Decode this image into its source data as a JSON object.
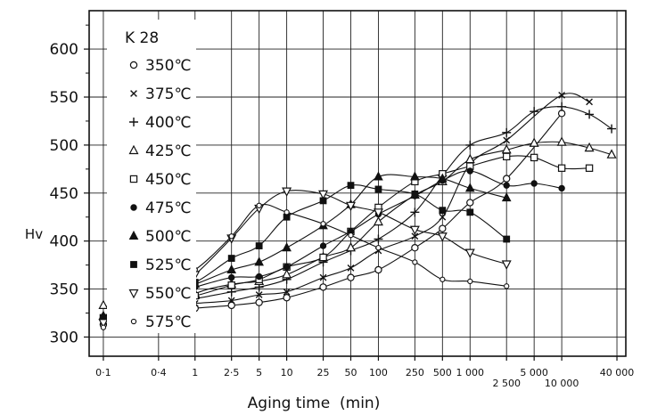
{
  "chart_data": {
    "type": "line",
    "title": "",
    "ylabel": "Hv",
    "xlabel": "Aging time  (min)",
    "xscale": "log",
    "xlim": [
      0.07,
      50000
    ],
    "ylim": [
      280,
      640
    ],
    "grid": true,
    "legend_title": "K 28",
    "legend_position": "top-left",
    "yticks": [
      300,
      350,
      400,
      450,
      500,
      550,
      600
    ],
    "xticks": [
      {
        "v": 0.1,
        "label": "0·1",
        "row": 1
      },
      {
        "v": 0.4,
        "label": "0·4",
        "row": 1
      },
      {
        "v": 1,
        "label": "1",
        "row": 1
      },
      {
        "v": 2.5,
        "label": "2·5",
        "row": 1
      },
      {
        "v": 5,
        "label": "5",
        "row": 1
      },
      {
        "v": 10,
        "label": "10",
        "row": 1
      },
      {
        "v": 25,
        "label": "25",
        "row": 1
      },
      {
        "v": 50,
        "label": "50",
        "row": 1
      },
      {
        "v": 100,
        "label": "100",
        "row": 1
      },
      {
        "v": 250,
        "label": "250",
        "row": 1
      },
      {
        "v": 500,
        "label": "500",
        "row": 1
      },
      {
        "v": 1000,
        "label": "1 000",
        "row": 1
      },
      {
        "v": 2500,
        "label": "2 500",
        "row": 2
      },
      {
        "v": 5000,
        "label": "5 000",
        "row": 1
      },
      {
        "v": 10000,
        "label": "10 000",
        "row": 2
      },
      {
        "v": 40000,
        "label": "40 000",
        "row": 1
      }
    ],
    "series": [
      {
        "name": "350℃",
        "marker": "circle-open",
        "x": [
          0.1,
          0.4,
          1,
          2.5,
          5,
          10,
          25,
          50,
          100,
          250,
          500,
          1000,
          2500,
          10000
        ],
        "y": [
          313,
          327,
          330,
          333,
          336,
          341,
          352,
          362,
          370,
          393,
          413,
          440,
          465,
          533
        ]
      },
      {
        "name": "375℃",
        "marker": "x",
        "x": [
          0.1,
          0.4,
          1,
          2.5,
          5,
          10,
          25,
          50,
          100,
          250,
          500,
          1000,
          2500,
          10000,
          20000
        ],
        "y": [
          316,
          332,
          335,
          338,
          344,
          347,
          362,
          372,
          390,
          405,
          425,
          480,
          505,
          552,
          545
        ]
      },
      {
        "name": "400℃",
        "marker": "plus",
        "x": [
          0.1,
          0.4,
          1,
          2.5,
          5,
          10,
          25,
          50,
          100,
          250,
          500,
          1000,
          2500,
          5000,
          10000,
          20000,
          35000
        ],
        "y": [
          318,
          335,
          340,
          347,
          352,
          360,
          378,
          390,
          402,
          430,
          468,
          500,
          513,
          535,
          540,
          532,
          517
        ]
      },
      {
        "name": "425℃",
        "marker": "triangle-open",
        "x": [
          0.1,
          0.4,
          1,
          2.5,
          5,
          10,
          25,
          50,
          100,
          250,
          500,
          1000,
          2500,
          5000,
          10000,
          20000,
          35000
        ],
        "y": [
          333,
          320,
          345,
          355,
          358,
          365,
          383,
          393,
          420,
          448,
          462,
          485,
          495,
          502,
          503,
          497,
          490
        ]
      },
      {
        "name": "450℃",
        "marker": "square-open",
        "x": [
          0.1,
          0.4,
          1,
          2.5,
          5,
          10,
          25,
          50,
          100,
          250,
          500,
          1000,
          2500,
          5000,
          10000,
          20000
        ],
        "y": [
          320,
          338,
          343,
          354,
          360,
          373,
          383,
          410,
          435,
          462,
          470,
          478,
          488,
          487,
          476,
          476
        ]
      },
      {
        "name": "475℃",
        "marker": "circle-filled",
        "x": [
          0.1,
          0.4,
          1,
          2.5,
          5,
          10,
          25,
          50,
          100,
          250,
          500,
          1000,
          2500,
          5000,
          10000
        ],
        "y": [
          318,
          341,
          352,
          362,
          363,
          373,
          395,
          410,
          428,
          447,
          463,
          473,
          458,
          460,
          455
        ]
      },
      {
        "name": "500℃",
        "marker": "triangle-filled",
        "x": [
          0.1,
          0.4,
          1,
          2.5,
          5,
          10,
          25,
          50,
          100,
          250,
          500,
          1000,
          2500
        ],
        "y": [
          322,
          343,
          355,
          370,
          378,
          393,
          416,
          438,
          467,
          467,
          465,
          455,
          445
        ]
      },
      {
        "name": "525℃",
        "marker": "square-filled",
        "x": [
          0.1,
          0.4,
          1,
          2.5,
          5,
          10,
          25,
          50,
          100,
          250,
          500,
          1000,
          2500
        ],
        "y": [
          320,
          348,
          357,
          382,
          395,
          425,
          442,
          458,
          454,
          449,
          432,
          430,
          402
        ]
      },
      {
        "name": "550℃",
        "marker": "triangle-down-open",
        "x": [
          0.1,
          0.4,
          1,
          2.5,
          5,
          10,
          25,
          50,
          100,
          250,
          500,
          1000,
          2500
        ],
        "y": [
          315,
          337,
          365,
          403,
          434,
          452,
          449,
          437,
          430,
          412,
          405,
          388,
          376
        ]
      },
      {
        "name": "575℃",
        "marker": "circle-small-open",
        "x": [
          0.1,
          0.4,
          1,
          2.5,
          5,
          10,
          25,
          50,
          100,
          250,
          500,
          1000,
          2500
        ],
        "y": [
          310,
          352,
          370,
          405,
          437,
          430,
          418,
          406,
          393,
          378,
          360,
          358,
          353
        ]
      }
    ]
  }
}
